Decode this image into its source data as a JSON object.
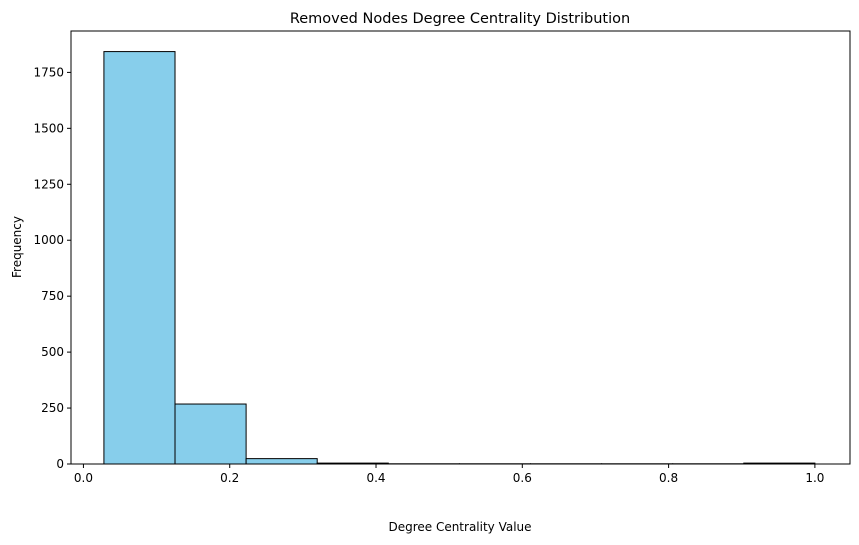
{
  "chart_data": {
    "type": "bar",
    "title": "Removed Nodes Degree Centrality Distribution",
    "xlabel": "Degree Centrality Value",
    "ylabel": "Frequency",
    "xlim": [
      -0.017,
      1.048
    ],
    "ylim": [
      0,
      1935
    ],
    "xticks": [
      0.0,
      0.2,
      0.4,
      0.6,
      0.8,
      1.0
    ],
    "xtick_labels": [
      "0.0",
      "0.2",
      "0.4",
      "0.6",
      "0.8",
      "1.0"
    ],
    "yticks": [
      0,
      250,
      500,
      750,
      1000,
      1250,
      1500,
      1750
    ],
    "ytick_labels": [
      "0",
      "250",
      "500",
      "750",
      "1000",
      "1250",
      "1500",
      "1750"
    ],
    "bin_edges": [
      0.028,
      0.1252,
      0.2224,
      0.3196,
      0.4168,
      0.514,
      0.6112,
      0.7084,
      0.8056,
      0.9028,
      1.0
    ],
    "values": [
      1843,
      268,
      24,
      4,
      1,
      1,
      1,
      1,
      1,
      4
    ],
    "bar_color": "#87CEEB",
    "edge_color": "#000000",
    "grid": false
  }
}
